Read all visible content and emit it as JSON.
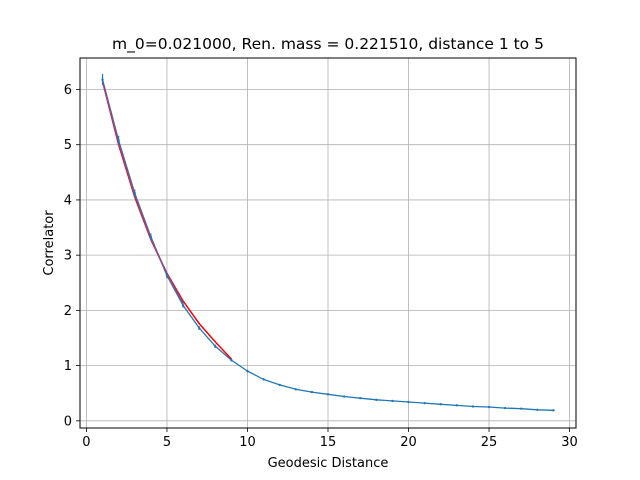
{
  "chart_data": {
    "type": "line",
    "title": "m_0=0.021000, Ren. mass = 0.221510, distance 1 to 5",
    "xlabel": "Geodesic Distance",
    "ylabel": "Correlator",
    "xlim": [
      -0.4,
      30.4
    ],
    "ylim": [
      -0.13,
      6.57
    ],
    "xticks": [
      0,
      5,
      10,
      15,
      20,
      25,
      30
    ],
    "yticks": [
      0,
      1,
      2,
      3,
      4,
      5,
      6
    ],
    "grid": true,
    "colors": {
      "data": "#1f77b4",
      "fit": "#ff0000",
      "overlap": "#7f4f8f"
    },
    "series": [
      {
        "kind": "data",
        "x": [
          1,
          2,
          3,
          4,
          5,
          6,
          7,
          8,
          9,
          10,
          11,
          12,
          13,
          14,
          15,
          16,
          17,
          18,
          19,
          20,
          21,
          22,
          23,
          24,
          25,
          26,
          27,
          28,
          29
        ],
        "y": [
          6.18,
          5.08,
          4.12,
          3.33,
          2.63,
          2.09,
          1.68,
          1.35,
          1.1,
          0.9,
          0.75,
          0.65,
          0.57,
          0.52,
          0.48,
          0.44,
          0.41,
          0.38,
          0.36,
          0.34,
          0.32,
          0.3,
          0.28,
          0.26,
          0.25,
          0.23,
          0.22,
          0.2,
          0.19
        ],
        "err": [
          0.1,
          0.08,
          0.07,
          0.06,
          0.05,
          0.04,
          0.035,
          0.03,
          0.025,
          0.02,
          0.02,
          0.015,
          0.015,
          0.012,
          0.01,
          0.01,
          0.01,
          0.01,
          0.01,
          0.008,
          0.008,
          0.008,
          0.008,
          0.008,
          0.007,
          0.007,
          0.007,
          0.007,
          0.007
        ]
      },
      {
        "kind": "fit",
        "x": [
          1,
          2,
          3,
          4,
          5,
          6,
          7,
          8,
          9
        ],
        "y": [
          6.15,
          5.0,
          4.05,
          3.28,
          2.67,
          2.17,
          1.76,
          1.43,
          1.12
        ]
      }
    ]
  }
}
